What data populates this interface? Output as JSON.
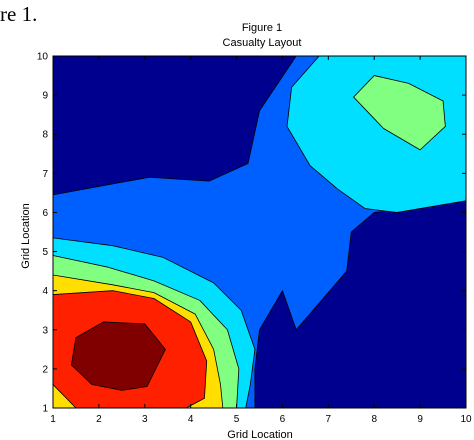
{
  "page_caption": "re 1.",
  "chart_data": {
    "type": "contour",
    "title": "Figure 1",
    "subtitle": "Casualty Layout",
    "xlabel": "Grid Location",
    "ylabel": "Grid Location",
    "xlim": [
      1,
      10
    ],
    "ylim": [
      1,
      10
    ],
    "x_ticks": [
      "1",
      "2",
      "3",
      "4",
      "5",
      "6",
      "7",
      "8",
      "9",
      "10"
    ],
    "y_ticks": [
      "1",
      "2",
      "3",
      "4",
      "5",
      "6",
      "7",
      "8",
      "9",
      "10"
    ],
    "grid": false,
    "colors": {
      "level_0": "#00008f",
      "level_1": "#0060ff",
      "level_2": "#00dfff",
      "level_3": "#80ff80",
      "level_4": "#ffdf00",
      "level_5": "#ff2000",
      "level_6": "#800000",
      "contour_line": "#000000"
    },
    "regions": [
      {
        "name": "background",
        "level": "level_0",
        "points": [
          [
            1,
            1
          ],
          [
            10,
            1
          ],
          [
            10,
            10
          ],
          [
            1,
            10
          ]
        ]
      },
      {
        "name": "connecting-band",
        "level": "level_1",
        "points": [
          [
            1,
            6.45
          ],
          [
            3.1,
            6.9
          ],
          [
            4.4,
            6.8
          ],
          [
            5.25,
            7.25
          ],
          [
            5.5,
            8.6
          ],
          [
            6.3,
            10
          ],
          [
            10,
            10
          ],
          [
            10,
            6.3
          ],
          [
            9.4,
            6.2
          ],
          [
            8.8,
            6.1
          ],
          [
            8,
            6
          ],
          [
            7.5,
            5.5
          ],
          [
            7.4,
            4.5
          ],
          [
            6.3,
            3
          ],
          [
            6,
            4
          ],
          [
            5.5,
            3
          ],
          [
            5.4,
            2
          ],
          [
            5.4,
            1
          ],
          [
            1,
            1
          ]
        ]
      },
      {
        "name": "right-cyan-lobe",
        "level": "level_2",
        "points": [
          [
            6.8,
            10
          ],
          [
            10,
            10
          ],
          [
            10,
            6.3
          ],
          [
            8.5,
            6.0
          ],
          [
            7.8,
            6.1
          ],
          [
            7.2,
            6.6
          ],
          [
            6.6,
            7.2
          ],
          [
            6.1,
            8.2
          ],
          [
            6.2,
            9.2
          ]
        ]
      },
      {
        "name": "right-green-peak",
        "level": "level_3",
        "points": [
          [
            8,
            9.5
          ],
          [
            8.75,
            9.3
          ],
          [
            9.5,
            8.85
          ],
          [
            9.55,
            8.2
          ],
          [
            9,
            7.6
          ],
          [
            8.2,
            8.15
          ],
          [
            7.55,
            8.95
          ]
        ]
      },
      {
        "name": "left-cyan-lobe",
        "level": "level_2",
        "points": [
          [
            1,
            5.35
          ],
          [
            2.3,
            5.15
          ],
          [
            3.4,
            4.85
          ],
          [
            4.5,
            4.2
          ],
          [
            5.1,
            3.5
          ],
          [
            5.4,
            2.5
          ],
          [
            5.3,
            1.6
          ],
          [
            5.2,
            1
          ],
          [
            1,
            1
          ]
        ]
      },
      {
        "name": "left-green-lobe",
        "level": "level_3",
        "points": [
          [
            1,
            4.9
          ],
          [
            2.2,
            4.6
          ],
          [
            3.2,
            4.25
          ],
          [
            4.2,
            3.75
          ],
          [
            4.8,
            3
          ],
          [
            5.05,
            2
          ],
          [
            5,
            1
          ],
          [
            1,
            1
          ]
        ]
      },
      {
        "name": "left-yellow-lobe",
        "level": "level_4",
        "points": [
          [
            1,
            4.4
          ],
          [
            2.3,
            4.15
          ],
          [
            3.2,
            3.95
          ],
          [
            4.1,
            3.4
          ],
          [
            4.5,
            2.5
          ],
          [
            4.65,
            1.6
          ],
          [
            4.7,
            1
          ],
          [
            1,
            1
          ]
        ]
      },
      {
        "name": "left-red-lobe",
        "level": "level_5",
        "points": [
          [
            1,
            3.9
          ],
          [
            2.3,
            4.0
          ],
          [
            3.2,
            3.8
          ],
          [
            4,
            3.2
          ],
          [
            4.35,
            2.2
          ],
          [
            4.3,
            1.25
          ],
          [
            3.9,
            1
          ],
          [
            1.5,
            1
          ],
          [
            1,
            1.6
          ]
        ]
      },
      {
        "name": "left-darkred-peak",
        "level": "level_6",
        "points": [
          [
            1.5,
            2.8
          ],
          [
            2.1,
            3.2
          ],
          [
            3,
            3.15
          ],
          [
            3.45,
            2.5
          ],
          [
            3.05,
            1.55
          ],
          [
            2.5,
            1.45
          ],
          [
            1.85,
            1.6
          ],
          [
            1.4,
            2.1
          ]
        ]
      }
    ]
  }
}
